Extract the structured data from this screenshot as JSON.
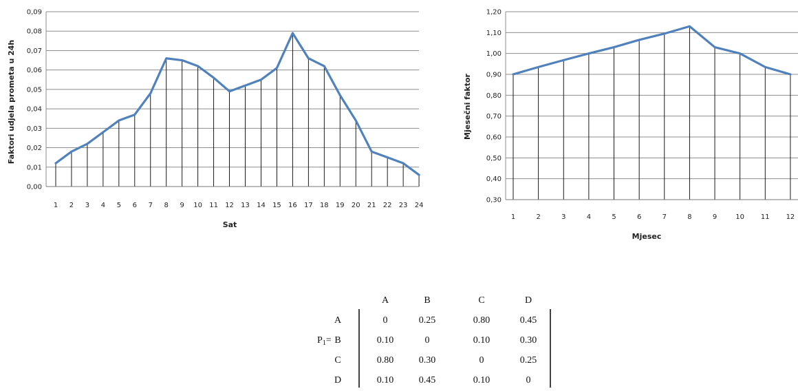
{
  "chart_data": [
    {
      "type": "line",
      "ylabel": "Faktori udjela prometa u 24h",
      "xlabel": "Sat",
      "categories": [
        "1",
        "2",
        "3",
        "4",
        "5",
        "6",
        "7",
        "8",
        "9",
        "10",
        "11",
        "12",
        "13",
        "14",
        "15",
        "16",
        "17",
        "18",
        "19",
        "20",
        "21",
        "22",
        "23",
        "24"
      ],
      "values": [
        0.012,
        0.018,
        0.022,
        0.028,
        0.034,
        0.037,
        0.048,
        0.066,
        0.065,
        0.062,
        0.056,
        0.049,
        0.052,
        0.055,
        0.061,
        0.079,
        0.066,
        0.062,
        0.047,
        0.034,
        0.018,
        0.015,
        0.012,
        0.006
      ],
      "ylim": [
        0,
        0.09
      ],
      "yticks": [
        "0,00",
        "0,01",
        "0,02",
        "0,03",
        "0,04",
        "0,05",
        "0,06",
        "0,07",
        "0,08",
        "0,09"
      ],
      "grid": true,
      "drop_lines": true,
      "line_color": "#4F81BD"
    },
    {
      "type": "line",
      "ylabel": "Mjesečni faktor",
      "xlabel": "Mjesec",
      "categories": [
        "1",
        "2",
        "3",
        "4",
        "5",
        "6",
        "7",
        "8",
        "9",
        "10",
        "11",
        "12"
      ],
      "values": [
        0.9,
        0.935,
        0.968,
        1.0,
        1.03,
        1.065,
        1.095,
        1.13,
        1.03,
        1.0,
        0.935,
        0.9
      ],
      "ylim": [
        0.3,
        1.2
      ],
      "yticks": [
        "0,30",
        "0,40",
        "0,50",
        "0,60",
        "0,70",
        "0,80",
        "0,90",
        "1,00",
        "1,10",
        "1,20"
      ],
      "grid": true,
      "drop_lines": true,
      "line_color": "#4F81BD"
    }
  ],
  "matrix": {
    "label_main": "P",
    "label_sub": "1",
    "label_eq": "=",
    "col_headers": [
      "A",
      "B",
      "C",
      "D"
    ],
    "row_headers": [
      "A",
      "B",
      "C",
      "D"
    ],
    "rows": [
      [
        "0",
        "0.25",
        "0.80",
        "0.45"
      ],
      [
        "0.10",
        "0",
        "0.10",
        "0.30"
      ],
      [
        "0.80",
        "0.30",
        "0",
        "0.25"
      ],
      [
        "0.10",
        "0.45",
        "0.10",
        "0"
      ]
    ]
  }
}
